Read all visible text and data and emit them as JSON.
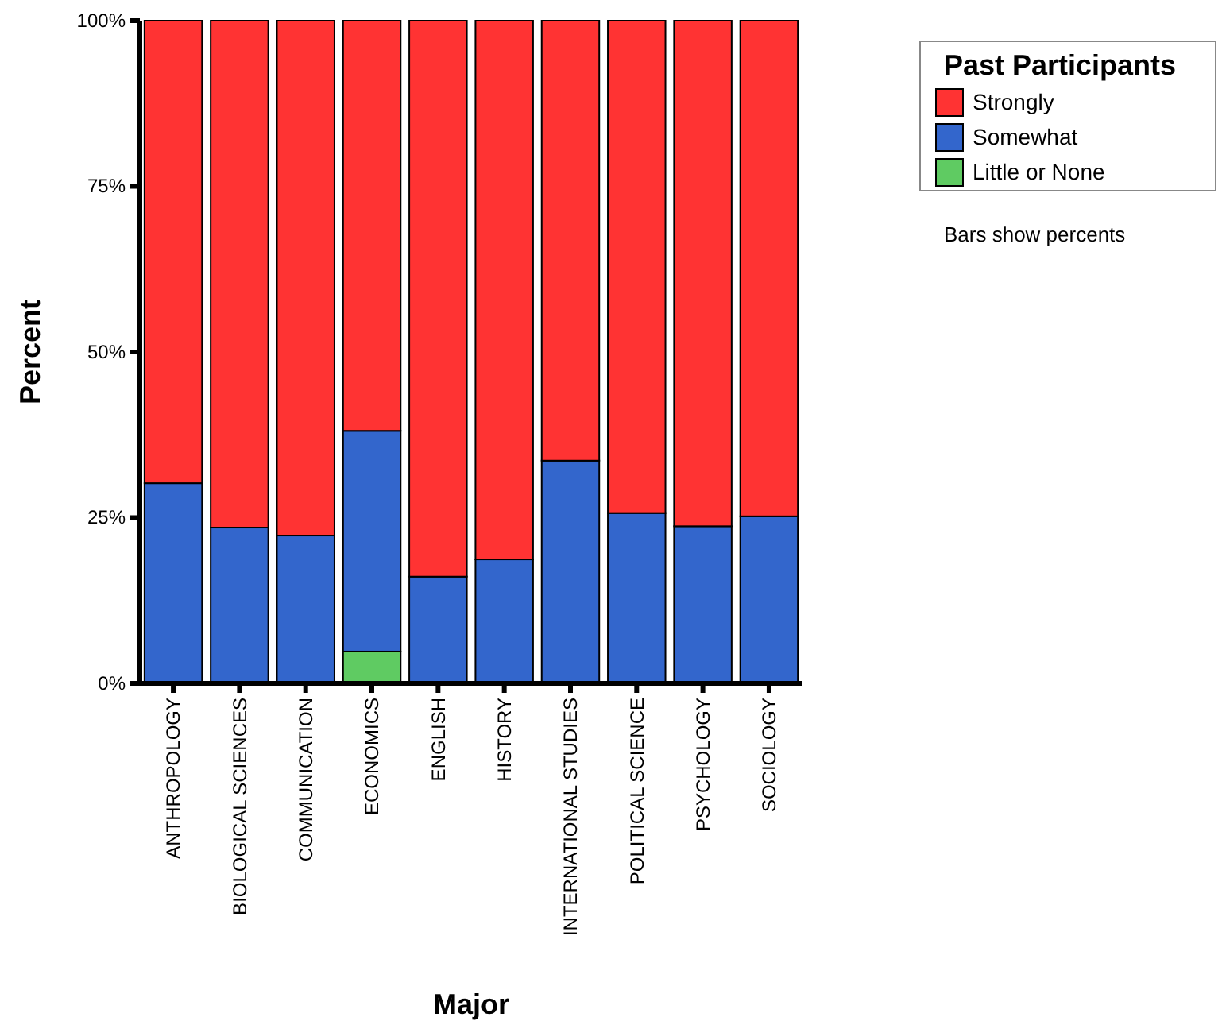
{
  "chart_data": {
    "type": "bar",
    "stacked": true,
    "xlabel": "Major",
    "ylabel": "Percent",
    "legend_title": "Past Participants",
    "legend": "top right",
    "annotations": [
      "Bars show percents"
    ],
    "categories": [
      "ANTHROPOLOGY",
      "BIOLOGICAL SCIENCES",
      "COMMUNICATION",
      "ECONOMICS",
      "ENGLISH",
      "HISTORY",
      "INTERNATIONAL STUDIES",
      "POLITICAL SCIENCE",
      "PSYCHOLOGY",
      "SOCIOLOGY"
    ],
    "series": [
      {
        "name": "Little or None",
        "color": "#5fcb62",
        "values": [
          0,
          0,
          0,
          4.8,
          0,
          0,
          0,
          0,
          0,
          0
        ]
      },
      {
        "name": "Somewhat",
        "color": "#3366cc",
        "values": [
          30.2,
          23.5,
          22.3,
          33.3,
          16.1,
          18.7,
          33.6,
          25.7,
          23.7,
          25.2
        ]
      },
      {
        "name": "Strongly",
        "color": "#ff3333",
        "values": [
          69.8,
          76.5,
          77.7,
          61.9,
          83.9,
          81.3,
          66.4,
          74.3,
          76.3,
          74.8
        ]
      }
    ],
    "ylim": [
      0,
      100
    ],
    "yticks": [
      {
        "value": 0,
        "label": "0%"
      },
      {
        "value": 25,
        "label": "25%"
      },
      {
        "value": 50,
        "label": "50%"
      },
      {
        "value": 75,
        "label": "75%"
      },
      {
        "value": 100,
        "label": "100%"
      }
    ]
  }
}
